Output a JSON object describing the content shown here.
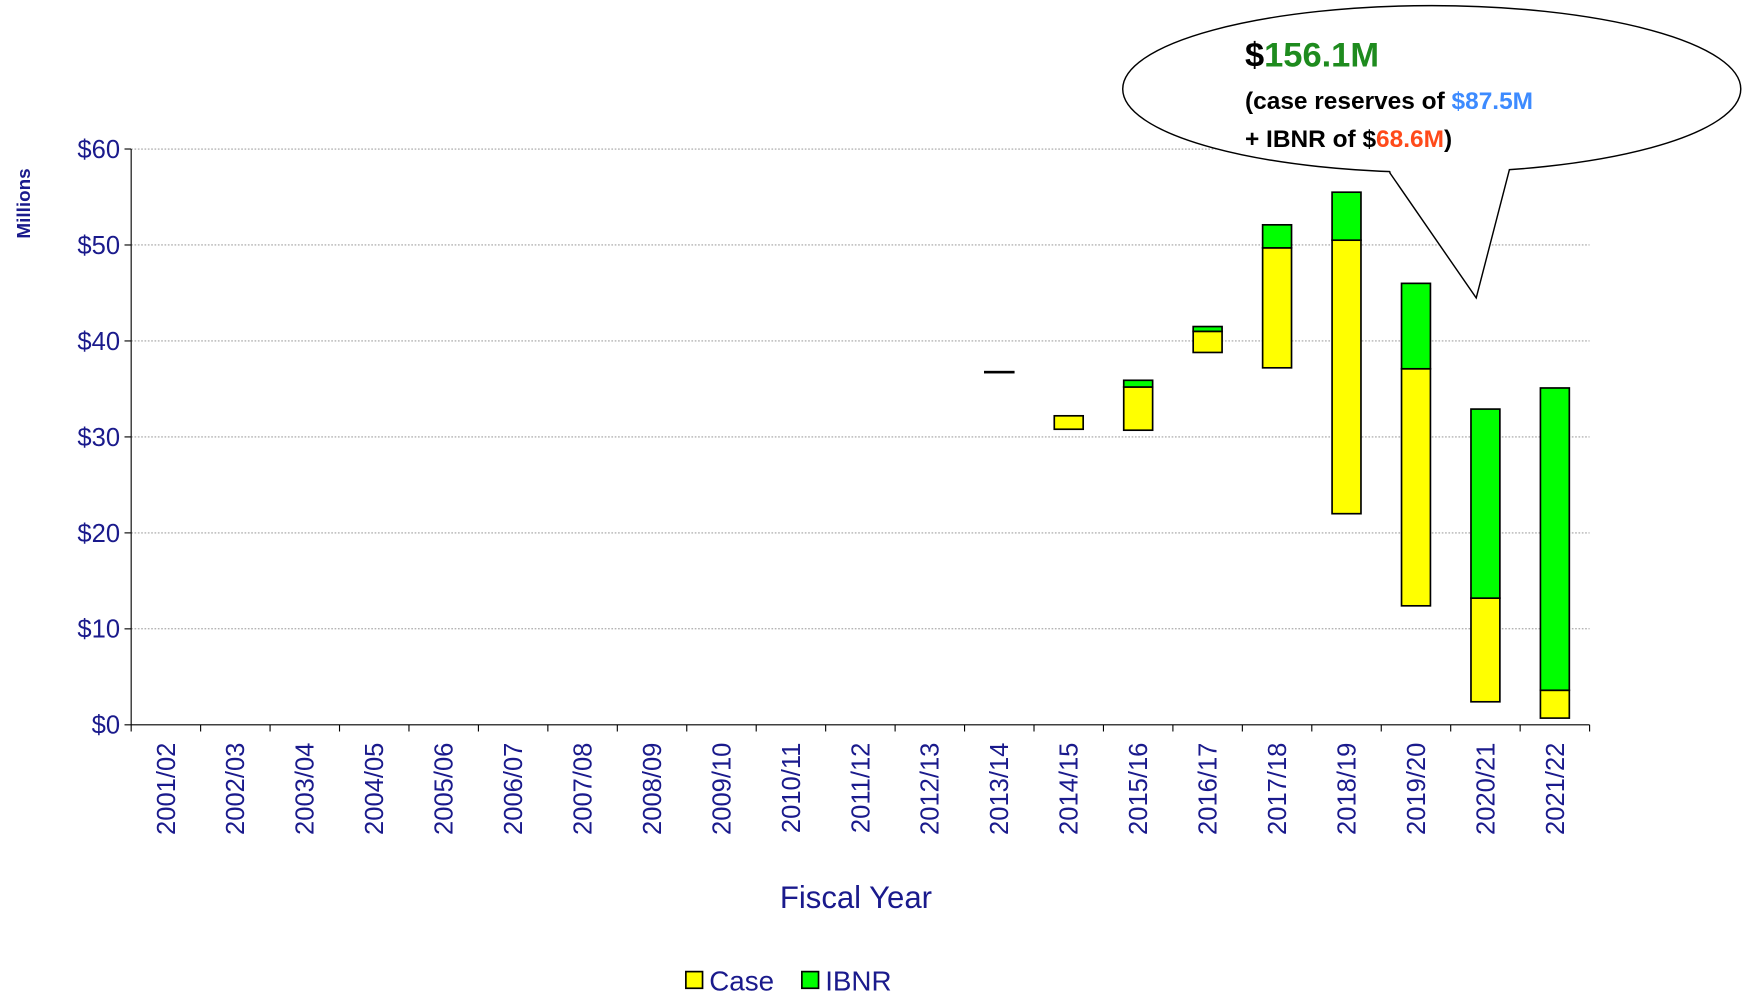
{
  "chart_data": {
    "type": "floating_stacked_bar",
    "x_label": "Fiscal Year",
    "y_label": "Millions",
    "categories": [
      "2001/02",
      "2002/03",
      "2003/04",
      "2004/05",
      "2005/06",
      "2006/07",
      "2007/08",
      "2008/09",
      "2009/10",
      "2010/11",
      "2011/12",
      "2012/13",
      "2013/14",
      "2014/15",
      "2015/16",
      "2016/17",
      "2017/18",
      "2018/19",
      "2019/20",
      "2020/21",
      "2021/22"
    ],
    "base": [
      null,
      null,
      null,
      null,
      null,
      null,
      null,
      null,
      null,
      null,
      null,
      null,
      36.7,
      30.8,
      30.7,
      38.8,
      37.2,
      22.0,
      12.4,
      2.4,
      0.7
    ],
    "series": [
      {
        "name": "Case",
        "color": "#ffff00",
        "values": [
          null,
          null,
          null,
          null,
          null,
          null,
          null,
          null,
          null,
          null,
          null,
          null,
          0.1,
          1.4,
          4.5,
          2.2,
          12.5,
          28.5,
          24.7,
          10.8,
          2.9
        ]
      },
      {
        "name": "IBNR",
        "color": "#00ff00",
        "values": [
          null,
          null,
          null,
          null,
          null,
          null,
          null,
          null,
          null,
          null,
          null,
          null,
          0,
          0,
          0.7,
          0.5,
          2.4,
          5.0,
          8.9,
          19.7,
          31.5
        ]
      }
    ],
    "ylim": [
      0,
      60
    ],
    "yticks": [
      {
        "value": 0,
        "label": "$0"
      },
      {
        "value": 10,
        "label": "$10"
      },
      {
        "value": 20,
        "label": "$20"
      },
      {
        "value": 30,
        "label": "$30"
      },
      {
        "value": 40,
        "label": "$40"
      },
      {
        "value": 50,
        "label": "$50"
      },
      {
        "value": 60,
        "label": "$60"
      }
    ],
    "grid": true,
    "legend": "bottom",
    "callout": {
      "total": [
        "$",
        "156.1M"
      ],
      "case": [
        "(case reserves of ",
        "$87.5M"
      ],
      "ibnr": [
        "+ IBNR of $",
        "68.6M",
        ")"
      ]
    }
  }
}
